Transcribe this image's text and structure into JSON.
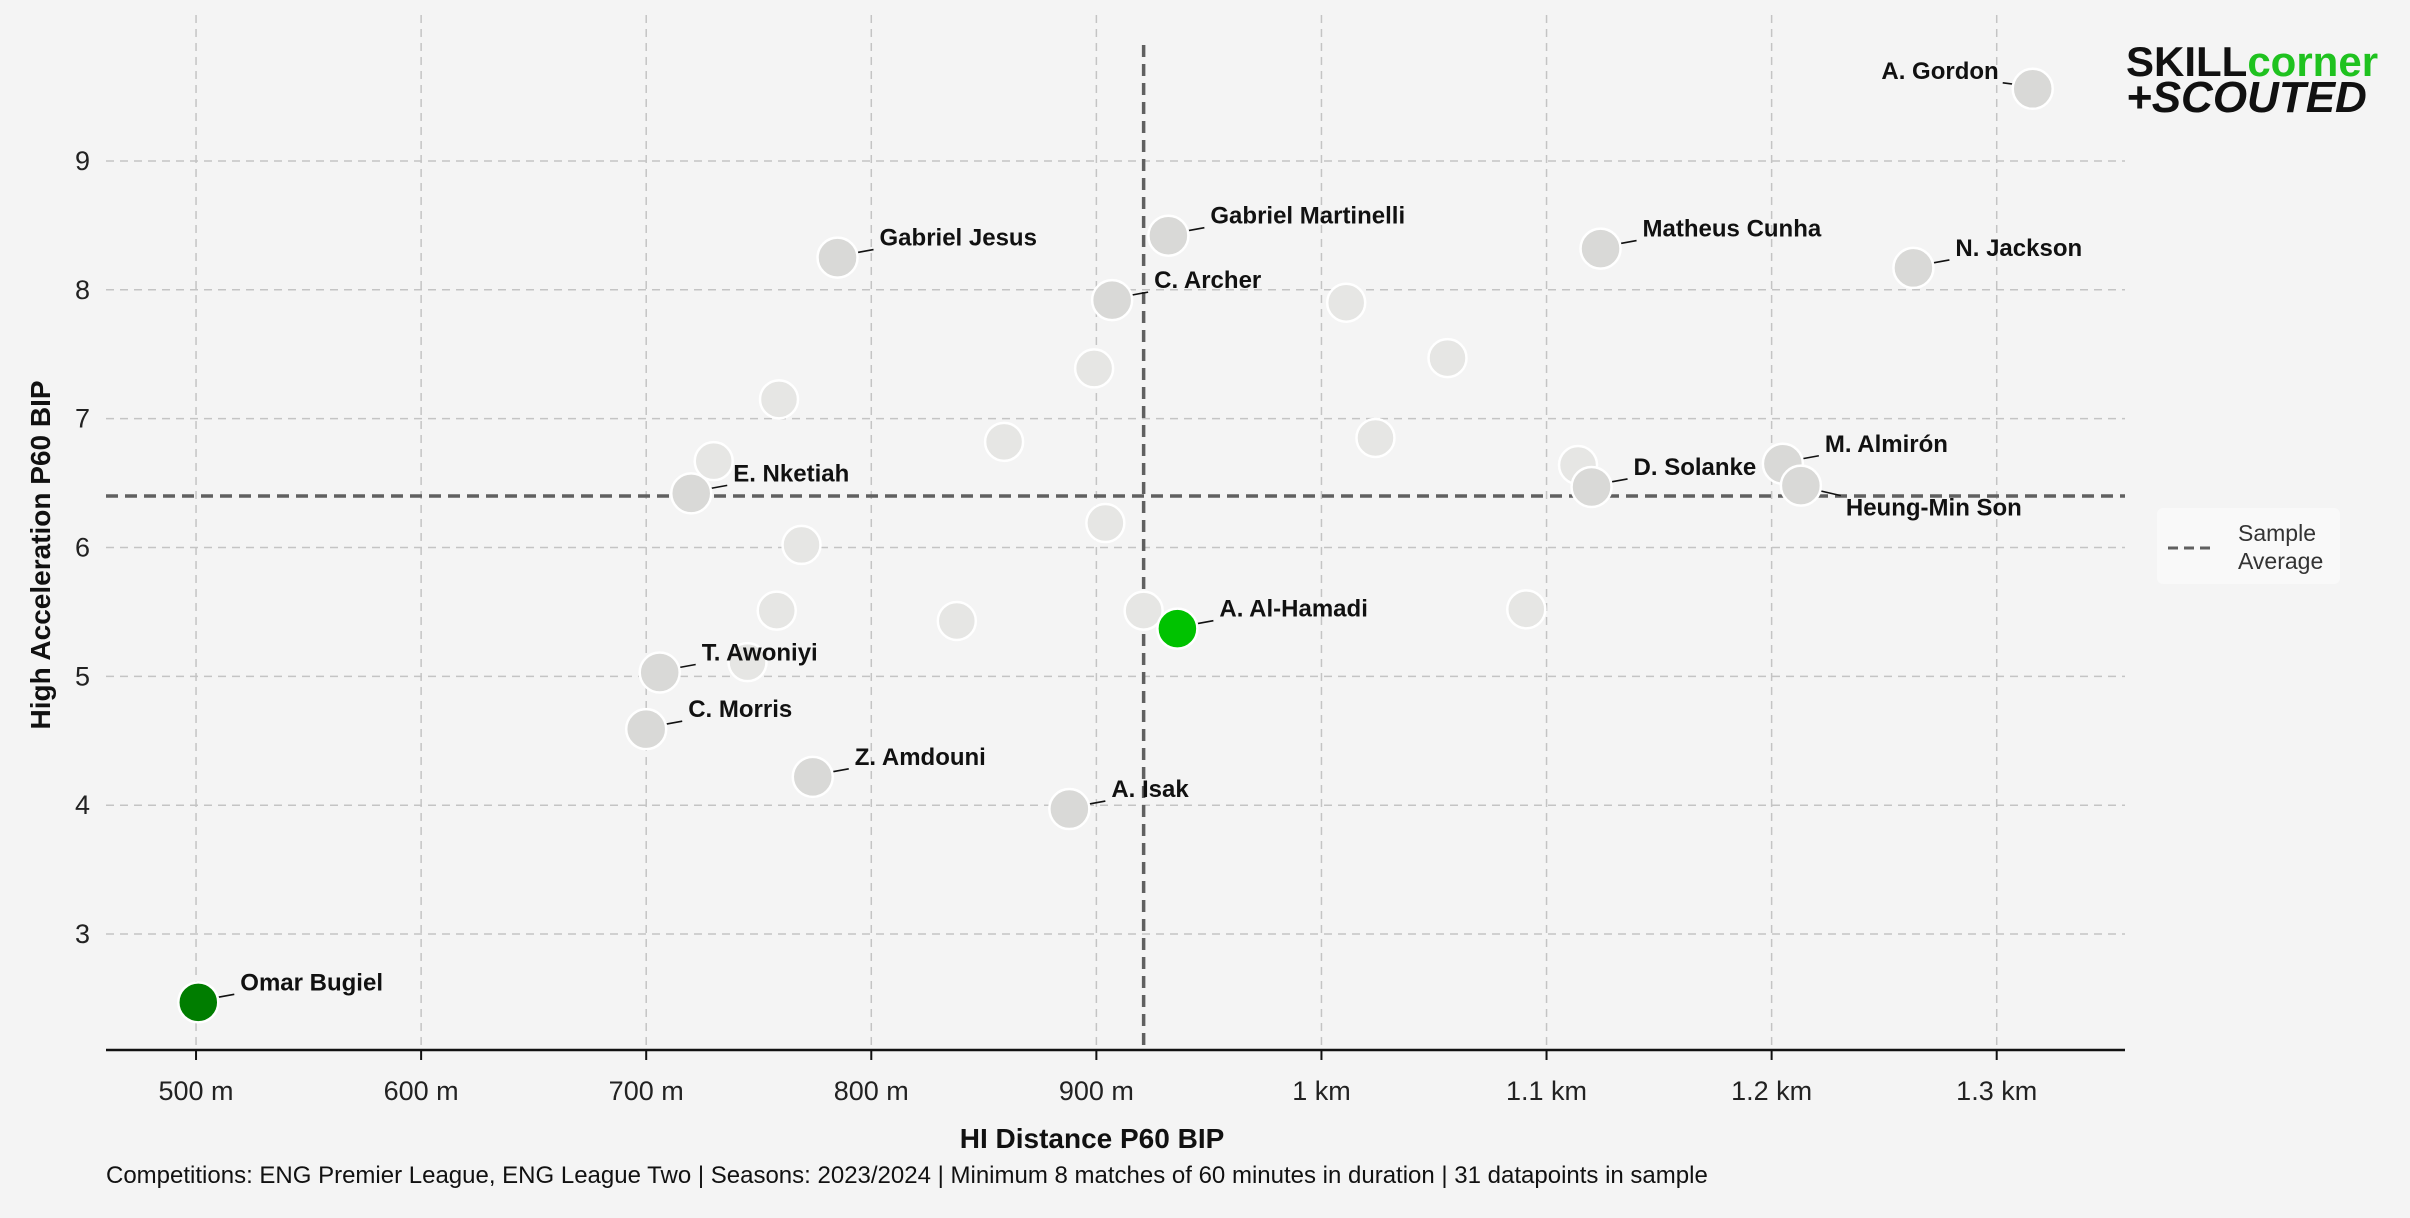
{
  "colors": {
    "background": "#f4f4f4",
    "neutral_point": "#d9d9d7",
    "faded_point": "#e6e6e4",
    "highlight_bright": "#00c200",
    "highlight_dark": "#007d00",
    "grid": "#c4c4c4",
    "average_line": "#606060",
    "logo_green": "#1fc21f",
    "logo_dark": "#111111"
  },
  "logo": {
    "line1a": "SKILL",
    "line1b": "corner",
    "line2": "+SCOUTED"
  },
  "legend": {
    "label_line1": "Sample",
    "label_line2": "Average"
  },
  "footnote": "Competitions: ENG Premier League, ENG League Two | Seasons: 2023/2024 | Minimum 8 matches of 60 minutes in duration | 31 datapoints in sample",
  "chart_data": {
    "type": "scatter",
    "xlabel": "HI Distance P60 BIP",
    "ylabel": "High Acceleration P60 BIP",
    "xlim": [
      460,
      1357
    ],
    "ylim": [
      2.1,
      9.9
    ],
    "x_ticks": [
      500,
      600,
      700,
      800,
      900,
      1000,
      1100,
      1200,
      1300
    ],
    "x_tick_labels": [
      "500 m",
      "600 m",
      "700 m",
      "800 m",
      "900 m",
      "1 km",
      "1.1 km",
      "1.2 km",
      "1.3 km"
    ],
    "y_ticks": [
      3,
      4,
      5,
      6,
      7,
      8,
      9
    ],
    "y_tick_labels": [
      "3",
      "4",
      "5",
      "6",
      "7",
      "8",
      "9"
    ],
    "grid": true,
    "legend_position": "right",
    "sample_average": {
      "x": 921,
      "y": 6.4
    },
    "labeled_points": [
      {
        "name": "A. Gordon",
        "x": 1316,
        "y": 9.56,
        "style": "neutral",
        "label_side": "left"
      },
      {
        "name": "Gabriel Jesus",
        "x": 785,
        "y": 8.25,
        "style": "neutral",
        "label_side": "right"
      },
      {
        "name": "Gabriel Martinelli",
        "x": 932,
        "y": 8.42,
        "style": "neutral",
        "label_side": "right"
      },
      {
        "name": "C. Archer",
        "x": 907,
        "y": 7.92,
        "style": "neutral",
        "label_side": "right"
      },
      {
        "name": "Matheus Cunha",
        "x": 1124,
        "y": 8.32,
        "style": "neutral",
        "label_side": "right"
      },
      {
        "name": "N. Jackson",
        "x": 1263,
        "y": 8.17,
        "style": "neutral",
        "label_side": "right"
      },
      {
        "name": "E. Nketiah",
        "x": 720,
        "y": 6.42,
        "style": "neutral",
        "label_side": "right"
      },
      {
        "name": "D. Solanke",
        "x": 1120,
        "y": 6.47,
        "style": "neutral",
        "label_side": "right"
      },
      {
        "name": "M. Almirón",
        "x": 1205,
        "y": 6.65,
        "style": "neutral",
        "label_side": "right"
      },
      {
        "name": "Heung-Min Son",
        "x": 1213,
        "y": 6.48,
        "style": "neutral",
        "label_side": "below-right"
      },
      {
        "name": "A. Al-Hamadi",
        "x": 936,
        "y": 5.37,
        "style": "highlight_bright",
        "label_side": "right"
      },
      {
        "name": "T. Awoniyi",
        "x": 706,
        "y": 5.03,
        "style": "neutral",
        "label_side": "right"
      },
      {
        "name": "C. Morris",
        "x": 700,
        "y": 4.59,
        "style": "neutral",
        "label_side": "right"
      },
      {
        "name": "Z. Amdouni",
        "x": 774,
        "y": 4.22,
        "style": "neutral",
        "label_side": "right"
      },
      {
        "name": "A. Isak",
        "x": 888,
        "y": 3.97,
        "style": "neutral",
        "label_side": "right"
      },
      {
        "name": "Omar Bugiel",
        "x": 501,
        "y": 2.47,
        "style": "highlight_dark",
        "label_side": "right"
      }
    ],
    "faded_points": [
      {
        "x": 1011,
        "y": 7.9
      },
      {
        "x": 1056,
        "y": 7.47
      },
      {
        "x": 899,
        "y": 7.39
      },
      {
        "x": 759,
        "y": 7.15
      },
      {
        "x": 859,
        "y": 6.82
      },
      {
        "x": 1024,
        "y": 6.85
      },
      {
        "x": 730,
        "y": 6.67
      },
      {
        "x": 1114,
        "y": 6.64
      },
      {
        "x": 904,
        "y": 6.19
      },
      {
        "x": 769,
        "y": 6.02
      },
      {
        "x": 758,
        "y": 5.51
      },
      {
        "x": 838,
        "y": 5.43
      },
      {
        "x": 921,
        "y": 5.51
      },
      {
        "x": 1091,
        "y": 5.52
      },
      {
        "x": 745,
        "y": 5.11
      }
    ]
  }
}
